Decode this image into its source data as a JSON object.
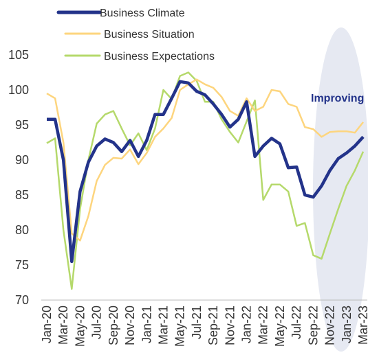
{
  "chart_data": {
    "type": "line",
    "categories": [
      "Jan-20",
      null,
      "Mar-20",
      null,
      "May-20",
      null,
      "Jul-20",
      null,
      "Sep-20",
      null,
      "Nov-20",
      null,
      "Jan-21",
      null,
      "Mar-21",
      null,
      "May-21",
      null,
      "Jul-21",
      null,
      "Sep-21",
      null,
      "Nov-21",
      null,
      "Jan-22",
      null,
      "Mar-22",
      null,
      "May-22",
      null,
      "Jul-22",
      null,
      "Sep-22",
      null,
      "Nov-22",
      null,
      "Jan-23",
      null,
      "Mar-23"
    ],
    "series": [
      {
        "name": "Business Climate",
        "color": "#23338a",
        "values": [
          95.8,
          95.8,
          90,
          75.5,
          85.5,
          89.7,
          92,
          93,
          92.5,
          91.2,
          92.8,
          90.5,
          92.8,
          96.5,
          96.5,
          98.8,
          101.2,
          101,
          99.8,
          99.3,
          98,
          96.5,
          94.7,
          95.8,
          98.3,
          90.5,
          92,
          93.1,
          92.3,
          88.9,
          89,
          85,
          84.7,
          86.3,
          88.5,
          90.2,
          91,
          92,
          93.3
        ]
      },
      {
        "name": "Business Situation",
        "color": "#fdd57e",
        "values": [
          99.5,
          98.8,
          92.5,
          79.5,
          78.5,
          82,
          87,
          89.3,
          90.3,
          90.2,
          91.5,
          89.4,
          91,
          93.3,
          94.5,
          96,
          100,
          100.8,
          101.5,
          100.8,
          100.3,
          99,
          97,
          96.3,
          98.8,
          97,
          97.6,
          100,
          99.8,
          98,
          97.6,
          94.7,
          94.4,
          93.3,
          94,
          94.1,
          94.1,
          93.9,
          95.4
        ]
      },
      {
        "name": "Business Expectations",
        "color": "#b5d96b",
        "values": [
          92.4,
          93.1,
          80,
          71.6,
          83,
          90,
          95.2,
          96.5,
          97,
          94.5,
          92.1,
          93.8,
          91.4,
          94.5,
          100,
          98.7,
          102,
          102.5,
          101.3,
          98.3,
          98.3,
          95.8,
          94,
          92.5,
          95.5,
          98.5,
          84.3,
          86.5,
          86.5,
          85.5,
          80.6,
          81,
          76.4,
          75.9,
          79.5,
          83,
          86.3,
          88.5,
          91.2
        ]
      }
    ],
    "ylim": [
      70,
      105
    ],
    "yticks": [
      70,
      75,
      80,
      85,
      90,
      95,
      100,
      105
    ],
    "annotations": [
      "Improving"
    ]
  }
}
